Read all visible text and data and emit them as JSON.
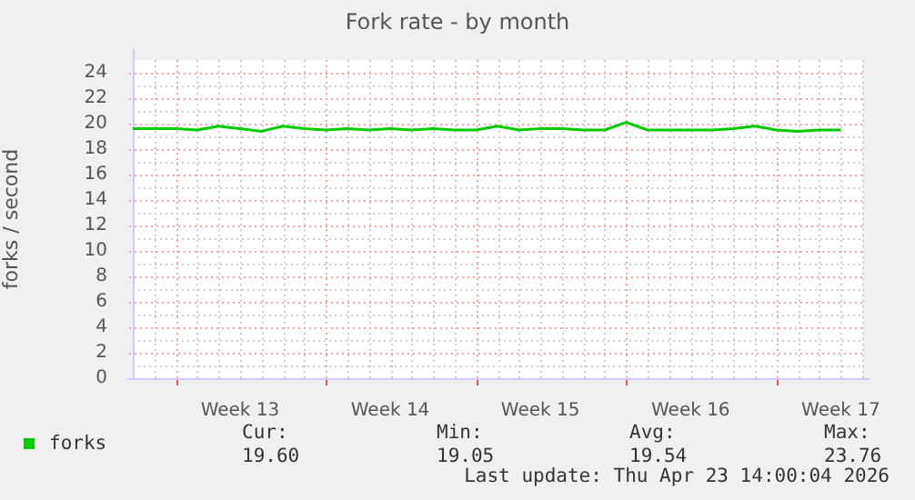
{
  "chart_data": {
    "type": "line",
    "title": "Fork rate - by month",
    "ylabel": "forks / second",
    "x": [
      "2026-03-21",
      "2026-03-22",
      "2026-03-23",
      "2026-03-24",
      "2026-03-25",
      "2026-03-26",
      "2026-03-27",
      "2026-03-28",
      "2026-03-29",
      "2026-03-30",
      "2026-03-31",
      "2026-04-01",
      "2026-04-02",
      "2026-04-03",
      "2026-04-04",
      "2026-04-05",
      "2026-04-06",
      "2026-04-07",
      "2026-04-08",
      "2026-04-09",
      "2026-04-10",
      "2026-04-11",
      "2026-04-12",
      "2026-04-13",
      "2026-04-14",
      "2026-04-15",
      "2026-04-16",
      "2026-04-17",
      "2026-04-18",
      "2026-04-19",
      "2026-04-20",
      "2026-04-21",
      "2026-04-22",
      "2026-04-23"
    ],
    "series": [
      {
        "name": "forks",
        "color": "#00cc00",
        "values": [
          19.6,
          19.6,
          19.6,
          19.5,
          19.8,
          19.6,
          19.4,
          19.8,
          19.6,
          19.5,
          19.6,
          19.5,
          19.6,
          19.5,
          19.6,
          19.5,
          19.5,
          19.8,
          19.5,
          19.6,
          19.6,
          19.5,
          19.5,
          20.1,
          19.5,
          19.5,
          19.5,
          19.5,
          19.6,
          19.8,
          19.5,
          19.4,
          19.5,
          19.5
        ]
      }
    ],
    "xlim": [
      "2026-03-21",
      "2026-04-24"
    ],
    "xticks": [
      {
        "value": "2026-03-23",
        "label": null
      },
      {
        "value": "2026-03-26",
        "label": "Week 13"
      },
      {
        "value": "2026-03-30",
        "label": null
      },
      {
        "value": "2026-04-02",
        "label": "Week 14"
      },
      {
        "value": "2026-04-06",
        "label": null
      },
      {
        "value": "2026-04-09",
        "label": "Week 15"
      },
      {
        "value": "2026-04-13",
        "label": null
      },
      {
        "value": "2026-04-16",
        "label": "Week 16"
      },
      {
        "value": "2026-04-20",
        "label": null
      },
      {
        "value": "2026-04-23",
        "label": "Week 17"
      }
    ],
    "ylim": [
      0,
      25
    ],
    "yticks": [
      0,
      2,
      4,
      6,
      8,
      10,
      12,
      14,
      16,
      18,
      20,
      22,
      24
    ],
    "grid": true,
    "legend": "bottom",
    "marker": "none",
    "line_style": "solid",
    "annotations": [
      "Cur:\n19.60",
      "Min:\n19.05",
      "Avg:\n19.54",
      "Max:\n23.76",
      "Last update: Thu Apr 23 14:00:04 2026"
    ]
  }
}
